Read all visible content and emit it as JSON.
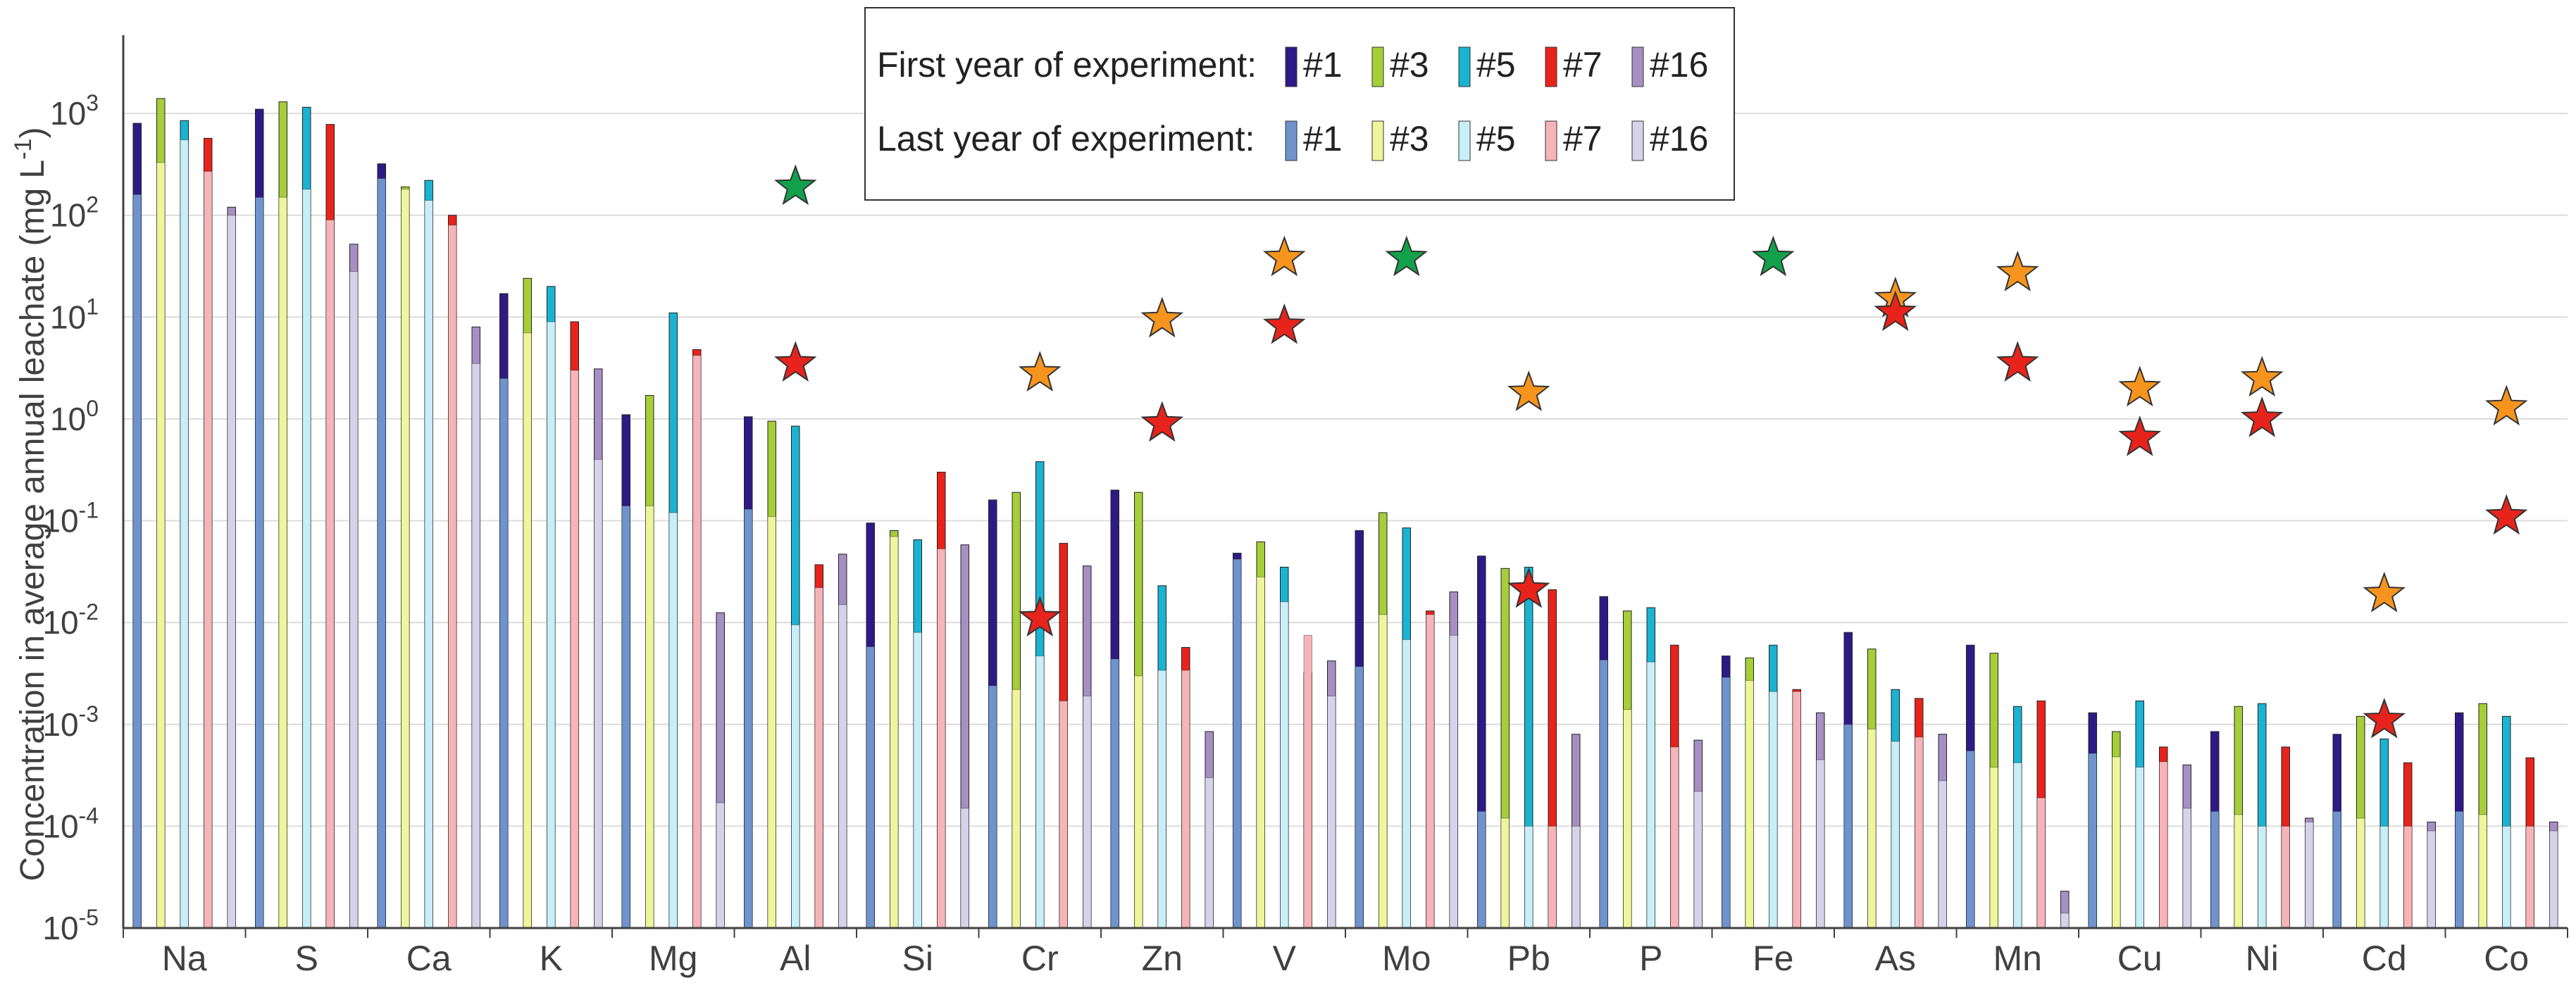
{
  "chart_data": {
    "type": "bar",
    "yscale": "log",
    "ylabel": "Concentration in average annual leachate (mg L⁻¹)",
    "ylabel_parts": {
      "main": "Concentration in average annual leachate (mg L",
      "sup": "-1",
      "close": ")"
    },
    "ylim": [
      1e-05,
      5000
    ],
    "y_ticks": [
      {
        "value": 1000,
        "base": "10",
        "exp": "3"
      },
      {
        "value": 100,
        "base": "10",
        "exp": "2"
      },
      {
        "value": 10,
        "base": "10",
        "exp": "1"
      },
      {
        "value": 1,
        "label": "10⁰",
        "plain": "10",
        "plain_exp": "0"
      },
      {
        "value": 0.1,
        "base": "10",
        "exp": "-1"
      },
      {
        "value": 0.01,
        "base": "10",
        "exp": "-2"
      },
      {
        "value": 0.001,
        "base": "10",
        "exp": "-3"
      },
      {
        "value": 0.0001,
        "base": "10",
        "exp": "-4"
      },
      {
        "value": 1e-05,
        "base": "10",
        "exp": "-5"
      }
    ],
    "categories": [
      "Na",
      "S",
      "Ca",
      "K",
      "Mg",
      "Al",
      "Si",
      "Cr",
      "Zn",
      "V",
      "Mo",
      "Pb",
      "P",
      "Fe",
      "As",
      "Mn",
      "Cu",
      "Ni",
      "Cd",
      "Co"
    ],
    "legend": {
      "first_year_label": "First year of experiment:",
      "last_year_label": "Last year of experiment:",
      "entries": [
        "#1",
        "#3",
        "#5",
        "#7",
        "#16"
      ]
    },
    "colors": {
      "first": [
        "#2e1a87",
        "#a6ce39",
        "#1ab3d1",
        "#e8231b",
        "#a68fc2"
      ],
      "last": [
        "#6f93cc",
        "#eef59b",
        "#c8eef7",
        "#f7b4b8",
        "#d6d2ea"
      ],
      "green_star": "#12a14b",
      "orange_star": "#f7941d",
      "red_star": "#e8231b",
      "grid": "#dcdcdc",
      "axis": "#404040"
    },
    "series": [
      {
        "name": "#1 first year",
        "values": [
          800,
          1100,
          320,
          17,
          1.1,
          1.05,
          0.095,
          0.16,
          0.2,
          0.048,
          0.08,
          0.045,
          0.018,
          0.0047,
          0.008,
          0.006,
          0.0013,
          0.00085,
          0.0008,
          0.0013
        ]
      },
      {
        "name": "#1 last year",
        "values": [
          160,
          150,
          230,
          2.5,
          0.14,
          0.13,
          0.0058,
          0.0024,
          0.0044,
          0.042,
          0.0037,
          0.00014,
          0.0043,
          0.0029,
          0.001,
          0.00055,
          0.00052,
          0.00014,
          0.00014,
          0.00014
        ]
      },
      {
        "name": "#3 first year",
        "values": [
          1400,
          1300,
          190,
          24,
          1.7,
          0.95,
          0.08,
          0.19,
          0.19,
          0.062,
          0.12,
          0.034,
          0.013,
          0.0045,
          0.0055,
          0.005,
          0.00085,
          0.0015,
          0.0012,
          0.0016
        ]
      },
      {
        "name": "#3 last year",
        "values": [
          330,
          150,
          180,
          7,
          0.14,
          0.11,
          0.07,
          0.0022,
          0.003,
          0.028,
          0.012,
          0.00012,
          0.0014,
          0.0027,
          0.0009,
          0.00038,
          0.00048,
          0.00013,
          0.00012,
          0.00013
        ]
      },
      {
        "name": "#5 first year",
        "values": [
          850,
          1150,
          220,
          20,
          11,
          0.85,
          0.065,
          0.38,
          0.023,
          0.035,
          0.085,
          0.035,
          0.014,
          0.006,
          0.0022,
          0.0015,
          0.0017,
          0.0016,
          0.00072,
          0.0012
        ]
      },
      {
        "name": "#5 last year",
        "values": [
          550,
          180,
          140,
          9,
          0.12,
          0.0095,
          0.008,
          0.0047,
          0.0034,
          0.016,
          0.0068,
          0.0001,
          0.0041,
          0.0021,
          0.00068,
          0.00042,
          0.00038,
          0.0001,
          0.0001,
          0.0001
        ]
      },
      {
        "name": "#7 first year",
        "values": [
          570,
          780,
          100,
          9,
          4.8,
          0.037,
          0.3,
          0.06,
          0.0057,
          0.0032,
          0.013,
          0.021,
          0.006,
          0.0022,
          0.0018,
          0.0017,
          0.0006,
          0.0006,
          0.00042,
          0.00047
        ]
      },
      {
        "name": "#7 last year",
        "values": [
          270,
          90,
          80,
          3,
          4.2,
          0.022,
          0.053,
          0.0017,
          0.0034,
          0.0075,
          0.012,
          0.0001,
          0.0006,
          0.0021,
          0.00075,
          0.00019,
          0.00043,
          0.0001,
          0.0001,
          0.0001
        ]
      },
      {
        "name": "#16 first year",
        "values": [
          120,
          52,
          8,
          3.1,
          0.0125,
          0.047,
          0.058,
          0.036,
          0.00085,
          0.0042,
          0.02,
          0.0008,
          0.0007,
          0.0013,
          0.0008,
          2.3e-05,
          0.0004,
          0.00012,
          0.00011,
          0.00011
        ]
      },
      {
        "name": "#16 last year",
        "values": [
          100,
          28,
          3.5,
          0.4,
          0.00017,
          0.015,
          0.00015,
          0.0019,
          0.0003,
          0.0019,
          0.0075,
          0.0001,
          0.00022,
          0.00045,
          0.00028,
          1.4e-05,
          0.00015,
          0.00011,
          9e-05,
          9e-05
        ]
      }
    ],
    "markers": [
      {
        "category": "Al",
        "y": 190,
        "color": "green"
      },
      {
        "category": "Al",
        "y": 3.5,
        "color": "red"
      },
      {
        "category": "Cr",
        "y": 2.8,
        "color": "orange"
      },
      {
        "category": "Cr",
        "y": 0.011,
        "color": "red"
      },
      {
        "category": "Zn",
        "y": 9.5,
        "color": "orange"
      },
      {
        "category": "Zn",
        "y": 0.9,
        "color": "red"
      },
      {
        "category": "V",
        "y": 38,
        "color": "orange"
      },
      {
        "category": "V",
        "y": 8.2,
        "color": "red"
      },
      {
        "category": "Mo",
        "y": 38,
        "color": "green"
      },
      {
        "category": "Pb",
        "y": 1.8,
        "color": "orange"
      },
      {
        "category": "Pb",
        "y": 0.021,
        "color": "red"
      },
      {
        "category": "Fe",
        "y": 38,
        "color": "green"
      },
      {
        "category": "As",
        "y": 15,
        "color": "orange"
      },
      {
        "category": "As",
        "y": 11,
        "color": "red"
      },
      {
        "category": "Mn",
        "y": 27,
        "color": "orange"
      },
      {
        "category": "Mn",
        "y": 3.5,
        "color": "red"
      },
      {
        "category": "Cu",
        "y": 2.0,
        "color": "orange"
      },
      {
        "category": "Cu",
        "y": 0.65,
        "color": "red"
      },
      {
        "category": "Ni",
        "y": 2.5,
        "color": "orange"
      },
      {
        "category": "Ni",
        "y": 1.0,
        "color": "red"
      },
      {
        "category": "Cd",
        "y": 0.019,
        "color": "orange"
      },
      {
        "category": "Cd",
        "y": 0.0011,
        "color": "red"
      },
      {
        "category": "Co",
        "y": 1.3,
        "color": "orange"
      },
      {
        "category": "Co",
        "y": 0.11,
        "color": "red"
      }
    ]
  }
}
